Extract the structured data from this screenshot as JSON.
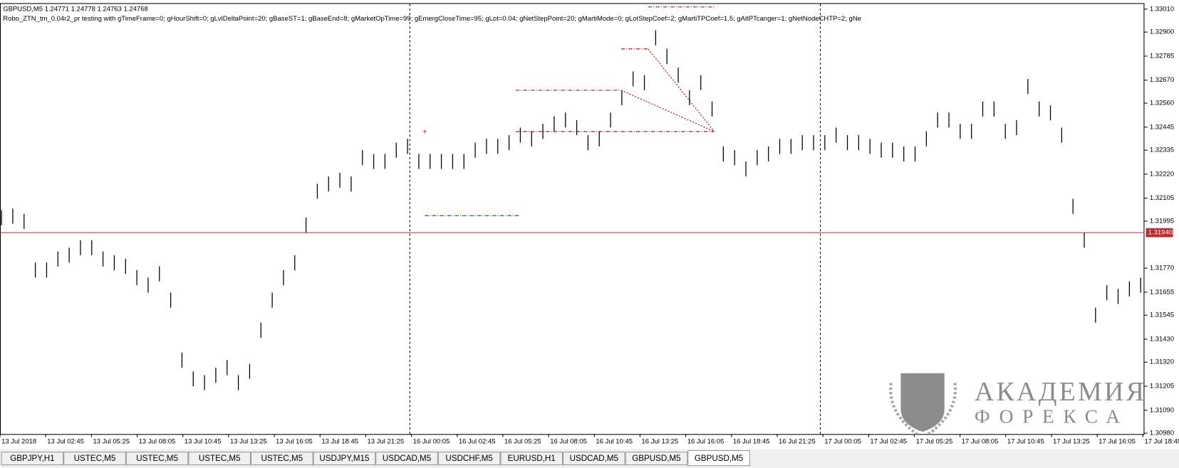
{
  "chart_data": {
    "type": "ohlc_bars",
    "header": "GBPUSD,M5  1.24771 1.24778 1.24763 1.24768",
    "params": "Robo_ZTN_tm_0.04r2_pr testing with gTimeFrame=0; gHourShift=0; gLvlDeltaPoint=20; gBaseST=1; gBaseEnd=8; gMarketOpTime=99; gEmergCloseTime=95; gLot=0.04; gNetStepPoint=20; gMartiMode=0; gLotStepCoef=2; gMartiTPCoef=1.5; gAltPTcanger=1; gNetNodeCHTP=2; gNe",
    "color": "#000000",
    "high": [
      1.32048,
      1.32055,
      1.3203,
      1.31797,
      1.31797,
      1.3185,
      1.31868,
      1.31904,
      1.31904,
      1.3185,
      1.31832,
      1.31815,
      1.31761,
      1.31725,
      1.31779,
      1.31653,
      1.31366,
      1.31276,
      1.31258,
      1.31294,
      1.3133,
      1.31258,
      1.31312,
      1.31509,
      1.31653,
      1.31761,
      1.31832,
      1.32012,
      1.32174,
      1.32209,
      1.32227,
      1.32209,
      1.32335,
      1.32317,
      1.32317,
      1.32371,
      1.32389,
      1.32317,
      1.32317,
      1.32317,
      1.32317,
      1.32317,
      1.32371,
      1.32389,
      1.32389,
      1.32407,
      1.32443,
      1.32425,
      1.32461,
      1.32497,
      1.32515,
      1.32479,
      1.32407,
      1.32425,
      1.32515,
      1.32622,
      1.32712,
      1.32694,
      1.32909,
      1.3282,
      1.3273,
      1.32622,
      1.32694,
      1.32568,
      1.32353,
      1.32335,
      1.32281,
      1.32335,
      1.32353,
      1.32389,
      1.32389,
      1.32407,
      1.32407,
      1.32407,
      1.32443,
      1.32407,
      1.32407,
      1.32389,
      1.32371,
      1.32371,
      1.32353,
      1.32353,
      1.32425,
      1.32515,
      1.32515,
      1.32461,
      1.32461,
      1.32568,
      1.32568,
      1.32461,
      1.32479,
      1.32676,
      1.32568,
      1.3255,
      1.32443,
      1.32102,
      1.3194,
      1.31581,
      1.31689,
      1.31671,
      1.31707,
      1.31725
    ],
    "low": [
      1.31976,
      1.31983,
      1.31958,
      1.31725,
      1.31725,
      1.31778,
      1.31796,
      1.31832,
      1.31832,
      1.31778,
      1.3176,
      1.31743,
      1.31689,
      1.31653,
      1.31707,
      1.31581,
      1.31294,
      1.31204,
      1.31186,
      1.31222,
      1.31258,
      1.31186,
      1.3124,
      1.31437,
      1.31581,
      1.31689,
      1.3176,
      1.3194,
      1.32102,
      1.32137,
      1.32155,
      1.32137,
      1.32263,
      1.32245,
      1.32245,
      1.32299,
      1.32317,
      1.32245,
      1.32245,
      1.32245,
      1.32245,
      1.32245,
      1.32299,
      1.32317,
      1.32317,
      1.32335,
      1.32371,
      1.32353,
      1.32389,
      1.32425,
      1.32443,
      1.32407,
      1.32335,
      1.32353,
      1.32443,
      1.3255,
      1.3264,
      1.32622,
      1.32837,
      1.32748,
      1.32658,
      1.3255,
      1.32622,
      1.32496,
      1.32281,
      1.32263,
      1.32209,
      1.32263,
      1.32281,
      1.32317,
      1.32317,
      1.32335,
      1.32335,
      1.32335,
      1.32371,
      1.32335,
      1.32335,
      1.32317,
      1.32299,
      1.32299,
      1.32281,
      1.32281,
      1.32353,
      1.32443,
      1.32443,
      1.32389,
      1.32389,
      1.32496,
      1.32496,
      1.32389,
      1.32407,
      1.32604,
      1.32496,
      1.32478,
      1.32371,
      1.3203,
      1.31868,
      1.31509,
      1.31617,
      1.31599,
      1.31635,
      1.31653
    ],
    "ylim": [
      1.30976,
      1.33035
    ],
    "yticks": [
      {
        "value": 1.3301,
        "label": "1.33010"
      },
      {
        "value": 1.329,
        "label": "1.32900"
      },
      {
        "value": 1.32785,
        "label": "1.32785"
      },
      {
        "value": 1.3267,
        "label": "1.32670"
      },
      {
        "value": 1.3256,
        "label": "1.32560"
      },
      {
        "value": 1.32445,
        "label": "1.32445"
      },
      {
        "value": 1.32335,
        "label": "1.32335"
      },
      {
        "value": 1.3222,
        "label": "1.32220"
      },
      {
        "value": 1.32105,
        "label": "1.32105"
      },
      {
        "value": 1.31995,
        "label": "1.31995"
      },
      {
        "value": 1.3177,
        "label": "1.31770"
      },
      {
        "value": 1.31655,
        "label": "1.31655"
      },
      {
        "value": 1.31545,
        "label": "1.31545"
      },
      {
        "value": 1.3143,
        "label": "1.31430"
      },
      {
        "value": 1.3132,
        "label": "1.31320"
      },
      {
        "value": 1.31205,
        "label": "1.31205"
      },
      {
        "value": 1.3109,
        "label": "1.31090"
      },
      {
        "value": 1.3098,
        "label": "1.30980"
      }
    ],
    "price_line": {
      "value": 1.3194,
      "label": "1.31940",
      "color": "#c0282d"
    },
    "time_labels": [
      "13 Jul 2018",
      "13 Jul 02:45",
      "13 Jul 05:25",
      "13 Jul 08:05",
      "13 Jul 10:45",
      "13 Jul 13:25",
      "13 Jul 16:05",
      "13 Jul 18:45",
      "13 Jul 21:25",
      "16 Jul 00:05",
      "16 Jul 02:45",
      "16 Jul 05:25",
      "16 Jul 08:05",
      "16 Jul 10:45",
      "16 Jul 13:25",
      "16 Jul 16:05",
      "16 Jul 18:45",
      "16 Jul 21:25",
      "17 Jul 00:05",
      "17 Jul 02:45",
      "17 Jul 05:25",
      "17 Jul 08:05",
      "17 Jul 10:45",
      "17 Jul 13:25",
      "17 Jul 16:05",
      "17 Jul 18:45"
    ]
  },
  "tabs": [
    "GBPJPY,H1",
    "USTEC,M5",
    "USTEC,M5",
    "USTEC,M5",
    "USTEC,M5",
    "USDJPY,M15",
    "USDCAD,M5",
    "USDCHF,M5",
    "EURUSD,H1",
    "USDCAD,M5",
    "GBPUSD,M5",
    "GBPUSD,M5"
  ],
  "active_tab": 11,
  "watermark": {
    "line1": "АКАДЕМИЯ",
    "line2": "ФОРЕКСА"
  }
}
